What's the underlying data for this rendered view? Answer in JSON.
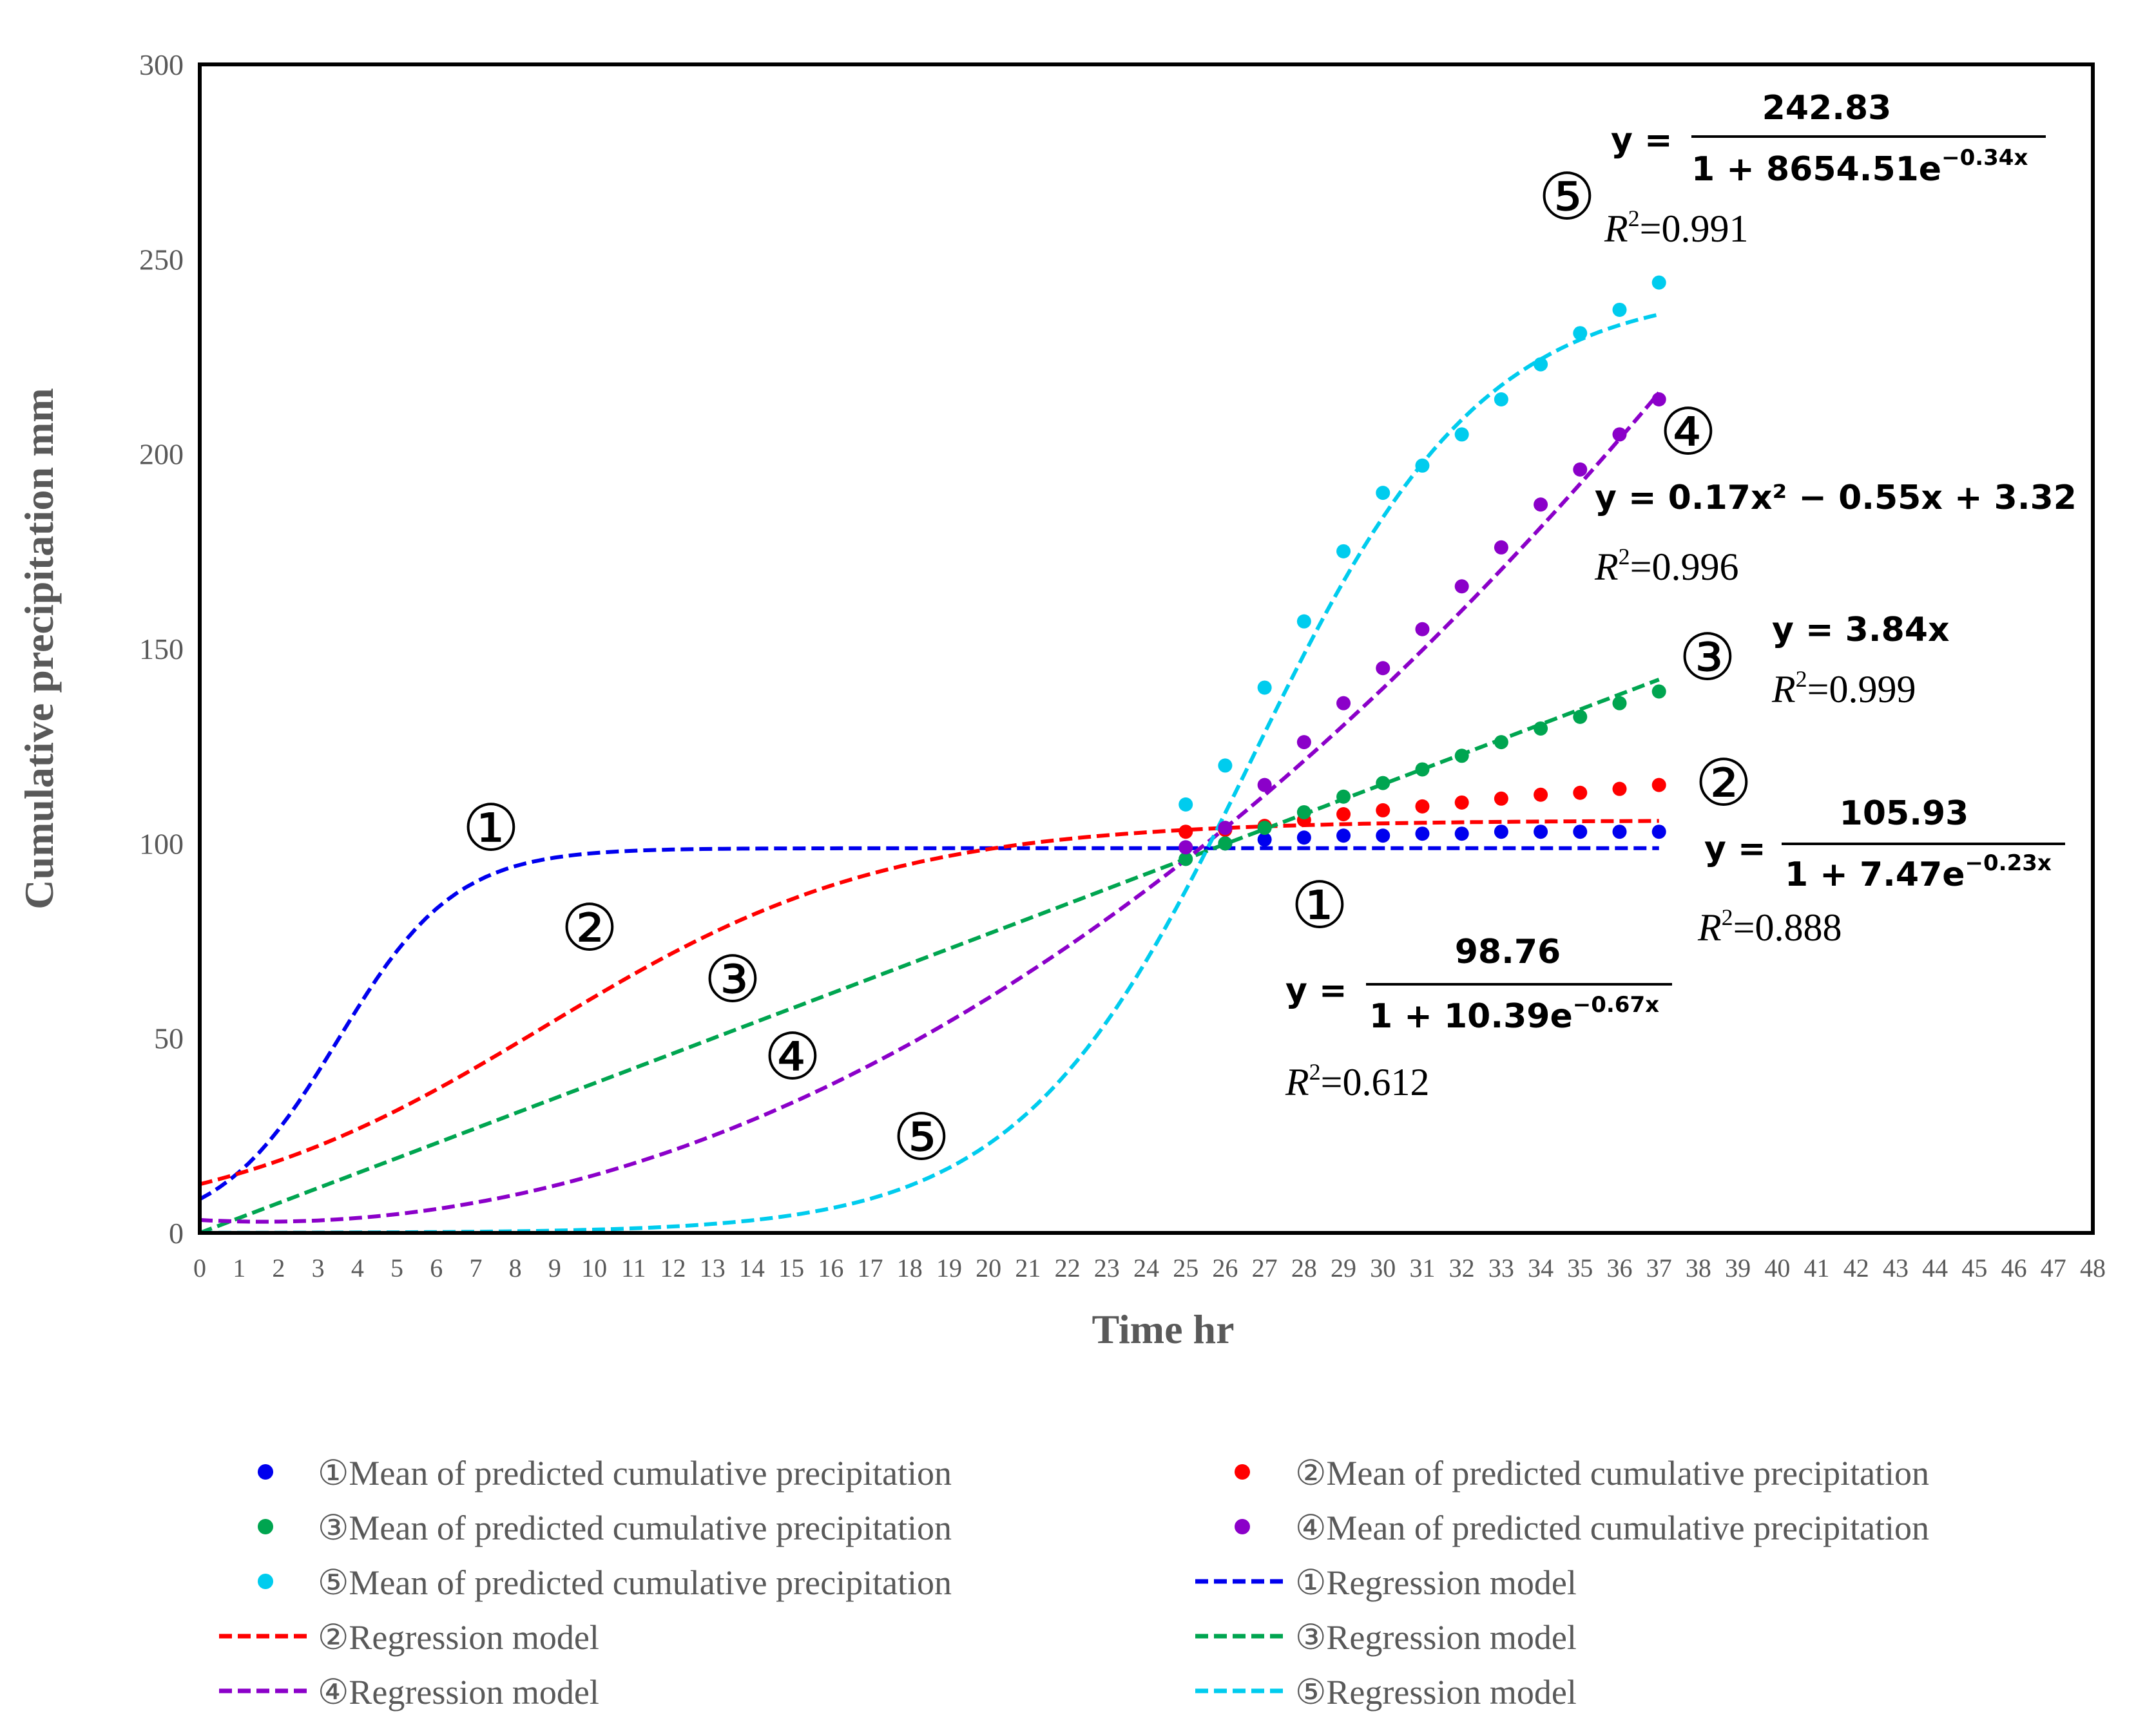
{
  "chart_data": {
    "type": "scatter",
    "title": "",
    "xlabel": "Time hr",
    "ylabel": "Cumulative precipitation  mm",
    "xlim": [
      0,
      48
    ],
    "ylim": [
      0,
      300
    ],
    "x_ticks": [
      0,
      1,
      2,
      3,
      4,
      5,
      6,
      7,
      8,
      9,
      10,
      11,
      12,
      13,
      14,
      15,
      16,
      17,
      18,
      19,
      20,
      21,
      22,
      23,
      24,
      25,
      26,
      27,
      28,
      29,
      30,
      31,
      32,
      33,
      34,
      35,
      36,
      37,
      38,
      39,
      40,
      41,
      42,
      43,
      44,
      45,
      46,
      47,
      48
    ],
    "y_ticks": [
      0,
      50,
      100,
      150,
      200,
      250,
      300
    ],
    "points_x": [
      25,
      26,
      27,
      28,
      29,
      30,
      31,
      32,
      33,
      34,
      35,
      36,
      37
    ],
    "series": [
      {
        "id": "1",
        "color": "#0000ee",
        "scatter_name": "①Mean of predicted cumulative precipitation",
        "line_name": "①Regression model",
        "values": [
          99,
          100,
          101,
          101.5,
          102,
          102,
          102.5,
          102.5,
          103,
          103,
          103,
          103,
          103
        ],
        "model": {
          "type": "logistic",
          "K": 98.76,
          "a": 10.39,
          "b": 0.67
        },
        "label": "①",
        "equation": {
          "lhs": "y =",
          "numerator": "98.76",
          "denominator": "1 + 10.39e",
          "exponent": "−0.67x"
        },
        "r2_symbol": "R",
        "r2_sup": "2",
        "r2_value": "=0.612"
      },
      {
        "id": "2",
        "color": "#ff0000",
        "scatter_name": "②Mean of predicted cumulative precipitation",
        "line_name": "②Regression model",
        "values": [
          103,
          103.5,
          104.5,
          106,
          107.5,
          108.5,
          109.5,
          110.5,
          111.5,
          112.5,
          113,
          114,
          115
        ],
        "model": {
          "type": "logistic",
          "K": 105.93,
          "a": 7.47,
          "b": 0.23
        },
        "label": "②",
        "equation": {
          "lhs": "y =",
          "numerator": "105.93",
          "denominator": "1 + 7.47e",
          "exponent": "−0.23x"
        },
        "r2_symbol": "R",
        "r2_sup": "2",
        "r2_value": "=0.888"
      },
      {
        "id": "3",
        "color": "#00a550",
        "scatter_name": "③Mean of predicted cumulative precipitation",
        "line_name": "③Regression model",
        "values": [
          96,
          100,
          104,
          108,
          112,
          115.5,
          119,
          122.5,
          126,
          129.5,
          132.5,
          136,
          139
        ],
        "model": {
          "type": "linear",
          "slope": 3.84
        },
        "label": "③",
        "equation": {
          "text": "y = 3.84x"
        },
        "r2_symbol": "R",
        "r2_sup": "2",
        "r2_value": "=0.999"
      },
      {
        "id": "4",
        "color": "#8b00c9",
        "scatter_name": "④Mean of predicted cumulative precipitation",
        "line_name": "④Regression model",
        "values": [
          99,
          104,
          115,
          126,
          136,
          145,
          155,
          166,
          176,
          187,
          196,
          205,
          214
        ],
        "model": {
          "type": "quadratic",
          "a": 0.17,
          "b": -0.55,
          "c": 3.32
        },
        "label": "④",
        "equation": {
          "text": "y = 0.17x² − 0.55x + 3.32"
        },
        "r2_symbol": "R",
        "r2_sup": "2",
        "r2_value": "=0.996"
      },
      {
        "id": "5",
        "color": "#00ccee",
        "scatter_name": "⑤Mean of predicted cumulative precipitation",
        "line_name": "⑤Regression model",
        "values": [
          110,
          120,
          140,
          157,
          175,
          190,
          197,
          205,
          214,
          223,
          231,
          237,
          244
        ],
        "model": {
          "type": "logistic",
          "K": 242.83,
          "a": 8654.51,
          "b": 0.34
        },
        "label": "⑤",
        "equation": {
          "lhs": "y =",
          "numerator": "242.83",
          "denominator": "1 + 8654.51e",
          "exponent": "−0.34x"
        },
        "r2_symbol": "R",
        "r2_sup": "2",
        "r2_value": "=0.991"
      }
    ]
  }
}
